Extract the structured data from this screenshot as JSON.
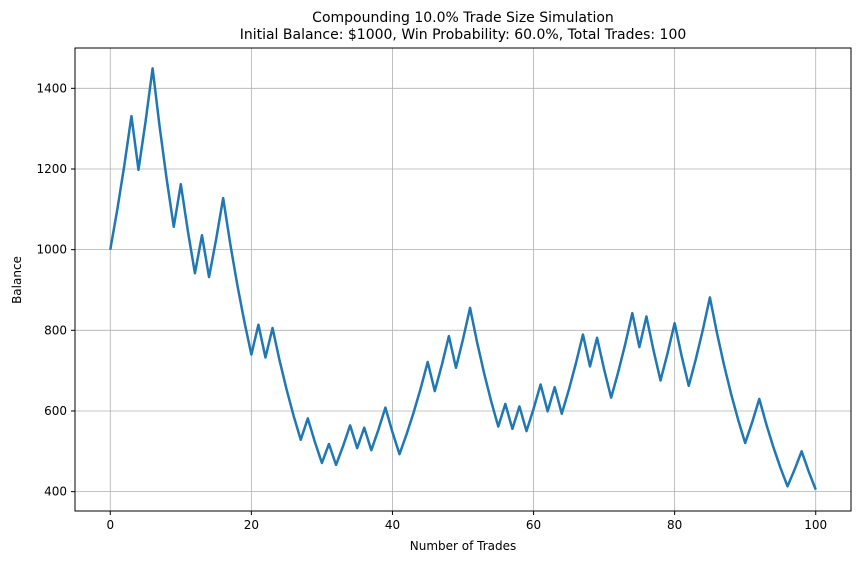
{
  "chart_data": {
    "type": "line",
    "title": "Compounding 10.0% Trade Size Simulation",
    "subtitle": "Initial Balance: $1000, Win Probability: 60.0%, Total Trades: 100",
    "xlabel": "Number of Trades",
    "ylabel": "Balance",
    "xlim": [
      -5,
      105
    ],
    "ylim": [
      352,
      1500
    ],
    "xticks": [
      0,
      20,
      40,
      60,
      80,
      100
    ],
    "yticks": [
      400,
      600,
      800,
      1000,
      1200,
      1400
    ],
    "grid": true,
    "line_color": "#1f77b4",
    "series": [
      {
        "values": [
          1000,
          1100,
          1210,
          1331,
          1197.9,
          1317.69,
          1449.46,
          1304.51,
          1174.06,
          1056.66,
          1162.32,
          1046.09,
          941.48,
          1035.63,
          932.07,
          1025.27,
          1127.8,
          1015.02,
          913.52,
          822.17,
          739.95,
          813.94,
          732.55,
          805.8,
          725.22,
          652.7,
          587.43,
          528.69,
          581.56,
          523.4,
          471.06,
          518.17,
          466.35,
          512.99,
          564.29,
          507.86,
          558.64,
          502.78,
          553.06,
          608.36,
          547.53,
          492.77,
          542.05,
          596.25,
          655.88,
          721.47,
          649.32,
          714.25,
          785.68,
          707.11,
          777.82,
          855.6,
          770.04,
          693.04,
          623.73,
          561.36,
          617.49,
          555.74,
          611.32,
          550.19,
          605.21,
          665.73,
          599.15,
          659.07,
          593.16,
          652.48,
          717.73,
          789.5,
          710.55,
          781.6,
          703.44,
          633.1,
          696.41,
          766.05,
          842.65,
          758.39,
          834.23,
          750.81,
          675.73,
          743.3,
          817.63,
          735.87,
          662.28,
          728.51,
          801.36,
          881.5,
          793.35,
          714.01,
          642.61,
          578.35,
          520.52,
          572.57,
          629.83,
          566.84,
          510.16,
          459.14,
          413.23,
          454.55,
          500.01,
          450.01,
          405.01
        ]
      }
    ]
  }
}
